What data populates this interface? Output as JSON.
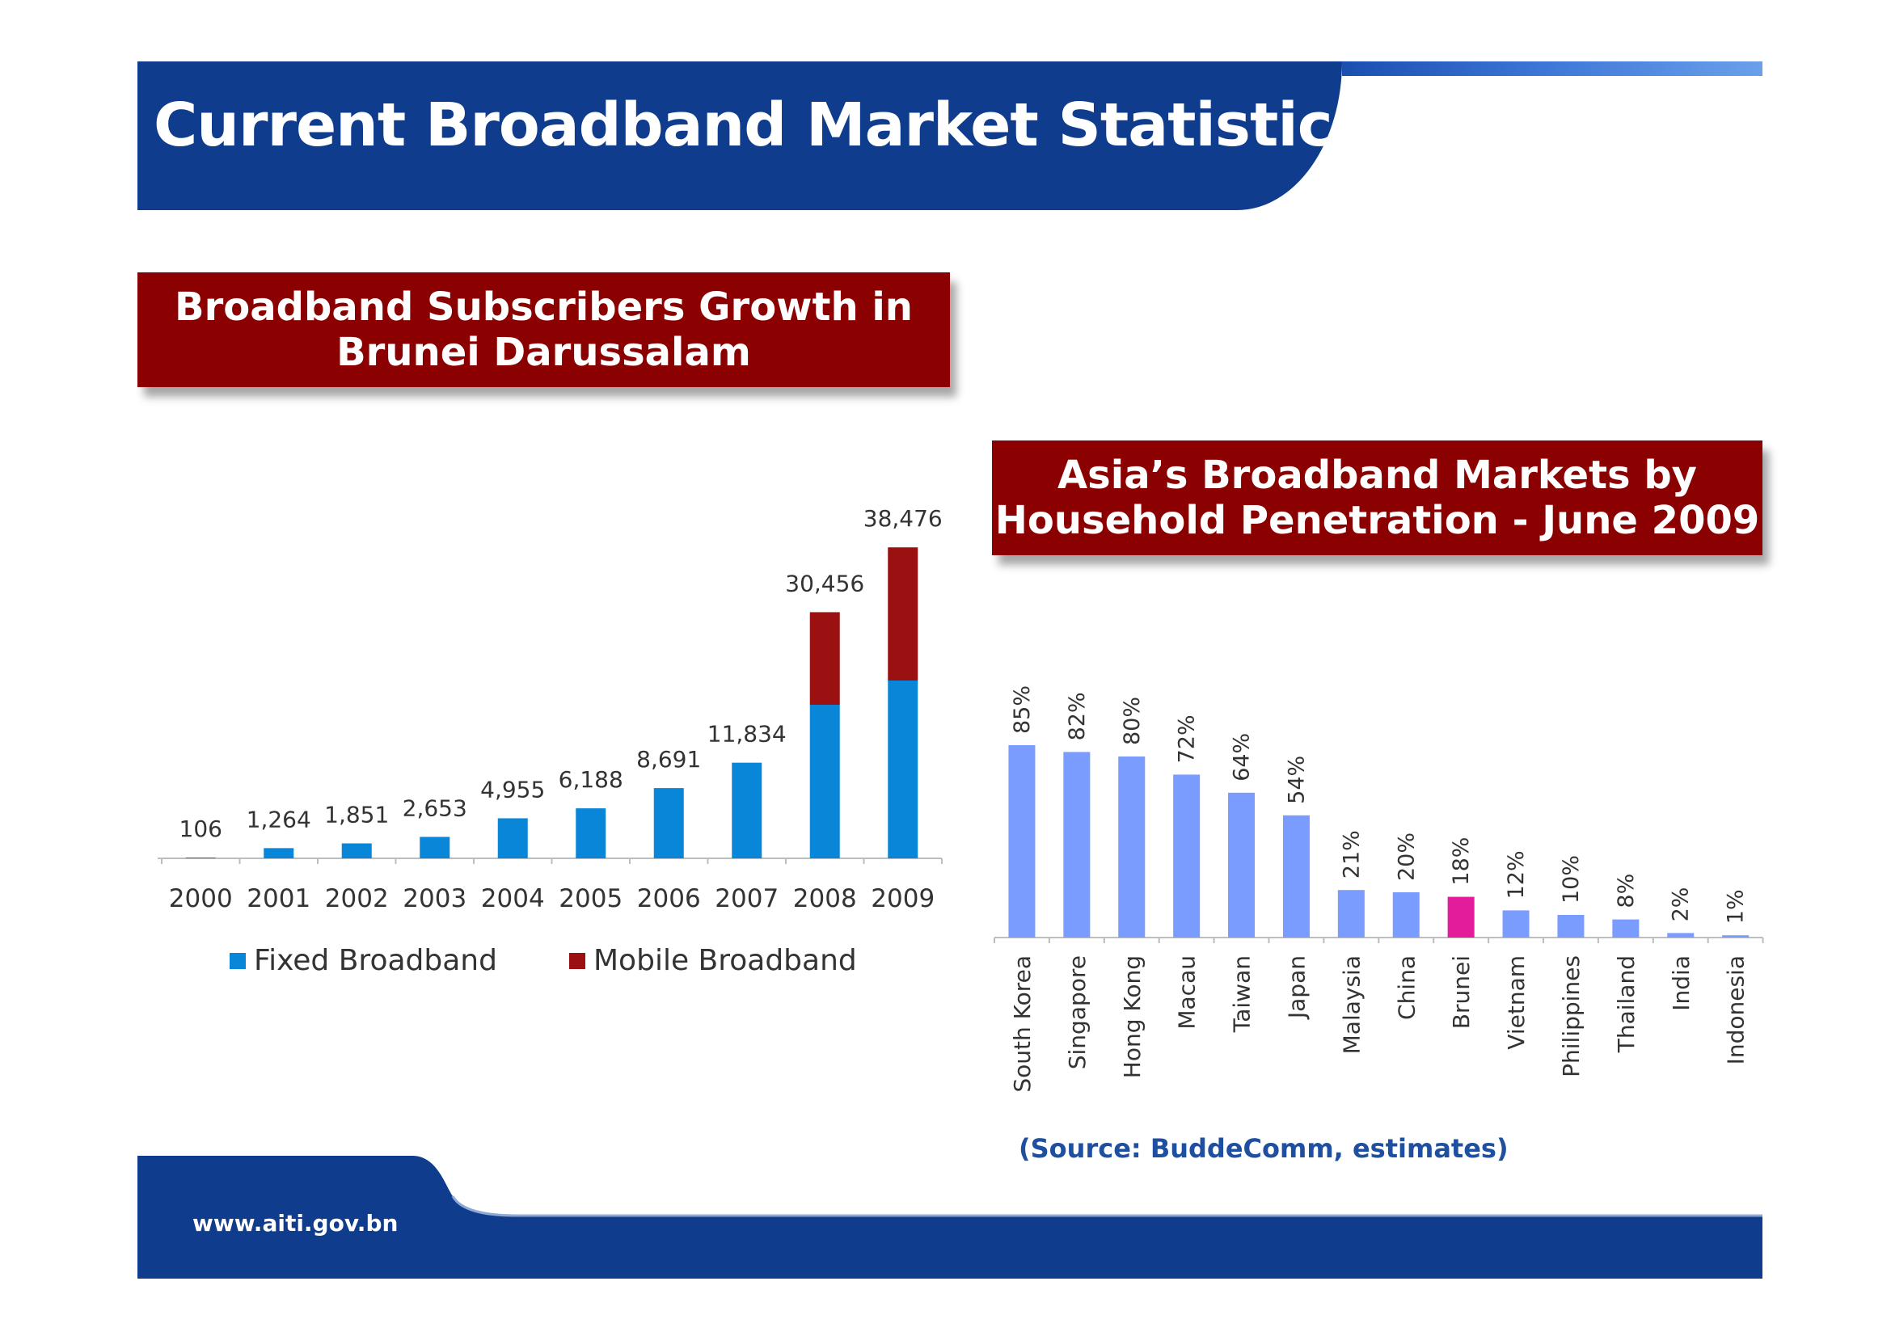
{
  "header": {
    "title": "Current Broadband Market Statistics"
  },
  "left_panel": {
    "title_line1": "Broadband Subscribers Growth in",
    "title_line2": "Brunei Darussalam"
  },
  "right_panel": {
    "title_line1": "Asia’s Broadband Markets by",
    "title_line2": "Household Penetration - June 2009"
  },
  "source_note": "(Source: BuddeComm, estimates)",
  "footer": {
    "url": "www.aiti.gov.bn"
  },
  "colors": {
    "navy": "#0f3c8c",
    "dark_red": "#8b0000",
    "fixed_blue": "#0a86d8",
    "mobile_red": "#9b1010",
    "periwinkle": "#7b9cff",
    "brunei_pink": "#e31c9c",
    "source_blue": "#1e4fa0"
  },
  "chart_data": [
    {
      "type": "bar",
      "stacked": true,
      "categories": [
        "2000",
        "2001",
        "2002",
        "2003",
        "2004",
        "2005",
        "2006",
        "2007",
        "2008",
        "2009"
      ],
      "series": [
        {
          "name": "Fixed Broadband",
          "values": [
            106,
            1264,
            1851,
            2653,
            4955,
            6188,
            8691,
            11834,
            19000,
            22000
          ],
          "color": "#0a86d8"
        },
        {
          "name": "Mobile Broadband",
          "values": [
            0,
            0,
            0,
            0,
            0,
            0,
            0,
            0,
            11456,
            16476
          ],
          "color": "#9b1010"
        }
      ],
      "total_labels": [
        "106",
        "1,264",
        "1,851",
        "2,653",
        "4,955",
        "6,188",
        "8,691",
        "11,834",
        "30,456",
        "38,476"
      ],
      "ylim": [
        0,
        40000
      ],
      "legend_position": "bottom",
      "grid": false
    },
    {
      "type": "bar",
      "categories": [
        "South Korea",
        "Singapore",
        "Hong Kong",
        "Macau",
        "Taiwan",
        "Japan",
        "Malaysia",
        "China",
        "Brunei",
        "Vietnam",
        "Philippines",
        "Thailand",
        "India",
        "Indonesia"
      ],
      "values": [
        85,
        82,
        80,
        72,
        64,
        54,
        21,
        20,
        18,
        12,
        10,
        8,
        2,
        1
      ],
      "value_labels": [
        "85%",
        "82%",
        "80%",
        "72%",
        "64%",
        "54%",
        "21%",
        "20%",
        "18%",
        "12%",
        "10%",
        "8%",
        "2%",
        "1%"
      ],
      "highlight": "Brunei",
      "ylim": [
        0,
        100
      ],
      "unit": "%",
      "grid": false
    }
  ]
}
